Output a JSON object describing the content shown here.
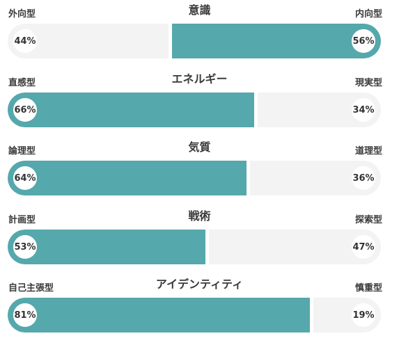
{
  "traits": [
    {
      "title": "意識",
      "left_label": "外向型",
      "right_label": "内向型",
      "left_pct": "44%",
      "right_pct": "56%",
      "dominant": "right",
      "value": 56
    },
    {
      "title": "エネルギー",
      "left_label": "直感型",
      "right_label": "現実型",
      "left_pct": "66%",
      "right_pct": "34%",
      "dominant": "left",
      "value": 66
    },
    {
      "title": "気質",
      "left_label": "論理型",
      "right_label": "道理型",
      "left_pct": "64%",
      "right_pct": "36%",
      "dominant": "left",
      "value": 64
    },
    {
      "title": "戦術",
      "left_label": "計画型",
      "right_label": "探索型",
      "left_pct": "53%",
      "right_pct": "47%",
      "dominant": "left",
      "value": 53
    },
    {
      "title": "アイデンティティ",
      "left_label": "自己主張型",
      "right_label": "慎重型",
      "left_pct": "81%",
      "right_pct": "19%",
      "dominant": "left",
      "value": 81
    }
  ],
  "colors": {
    "fill": "#55a8ab",
    "track": "#f3f3f3",
    "text": "#333333"
  }
}
